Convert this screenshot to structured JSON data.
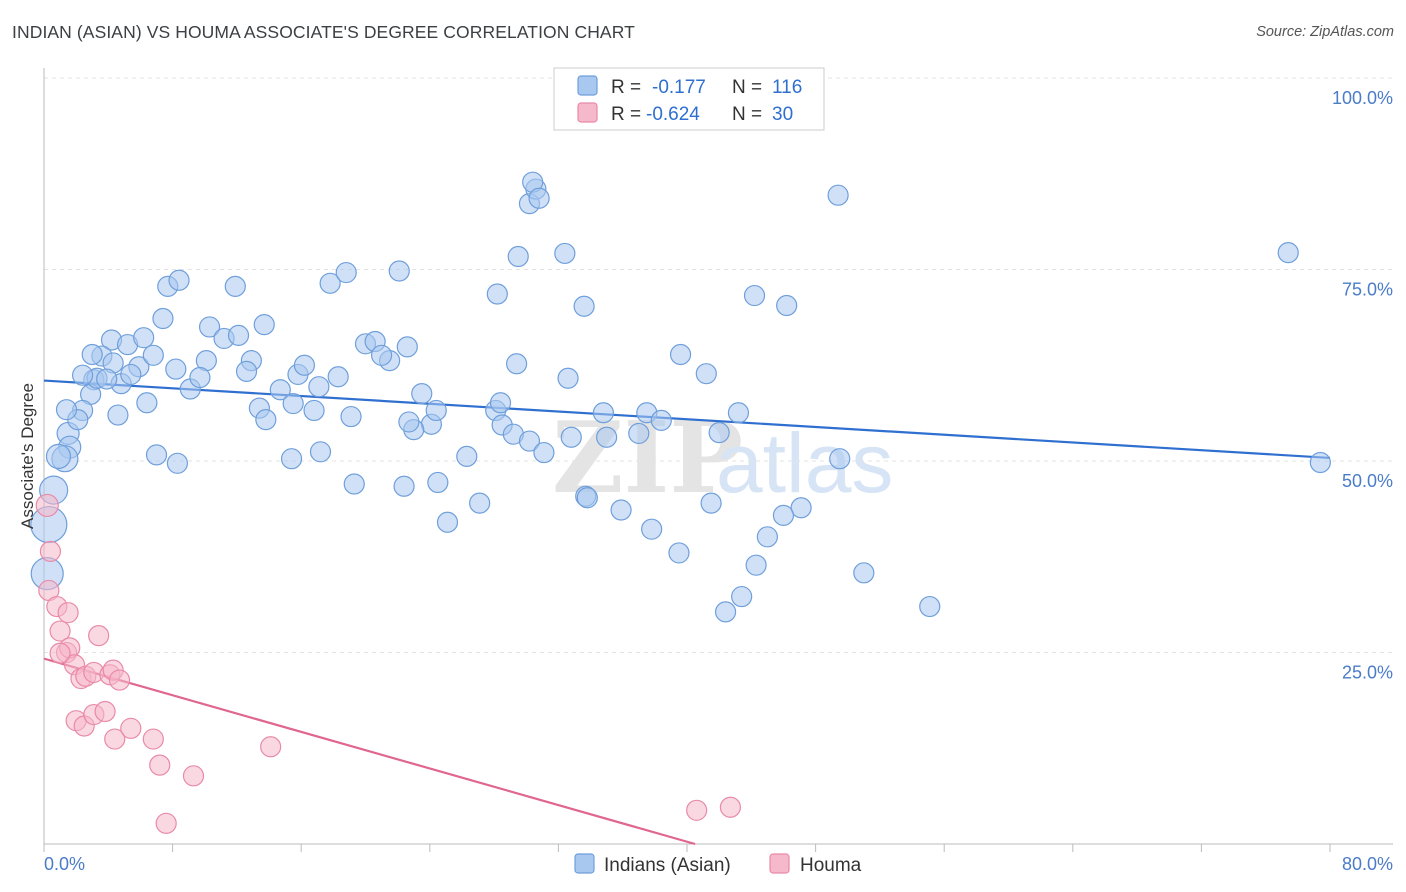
{
  "page": {
    "title": "INDIAN (ASIAN) VS HOUMA ASSOCIATE'S DEGREE CORRELATION CHART",
    "source": "Source: ZipAtlas.com",
    "watermark_zip": "ZIP",
    "watermark_atlas": "atlas"
  },
  "colors": {
    "blue_fill": "#a9c8f0",
    "blue_stroke": "#6f9fdb",
    "blue_line": "#2f6fd0",
    "pink_fill": "#f6b8cb",
    "pink_stroke": "#e98aa8",
    "pink_line": "#e06690",
    "grid": "#e3e3e3",
    "tick_text": "#4a7cc8"
  },
  "legend": {
    "rows": [
      {
        "r_label": "R =",
        "r_value": "-0.177",
        "n_label": "N =",
        "n_value": "116"
      },
      {
        "r_label": "R =",
        "r_value": "-0.624",
        "n_label": "N =",
        "n_value": "30"
      }
    ]
  },
  "chart_data": {
    "type": "scatter",
    "title": "INDIAN (ASIAN) VS HOUMA ASSOCIATE'S DEGREE CORRELATION CHART",
    "xlabel": "",
    "ylabel": "Associate's Degree",
    "xlim": [
      0,
      80
    ],
    "ylim": [
      0,
      100
    ],
    "x_tick_labels": [
      {
        "value": 0,
        "label": "0.0%"
      },
      {
        "value": 80,
        "label": "80.0%"
      }
    ],
    "y_tick_labels": [
      {
        "value": 25,
        "label": "25.0%"
      },
      {
        "value": 50,
        "label": "50.0%"
      },
      {
        "value": 75,
        "label": "75.0%"
      },
      {
        "value": 100,
        "label": "100.0%"
      }
    ],
    "grid": true,
    "legend_position": "bottom",
    "series": [
      {
        "name": "Indians (Asian)",
        "color": "blue",
        "R": -0.177,
        "N": 116,
        "trend": {
          "x": [
            0,
            80
          ],
          "y": [
            60.5,
            50.4
          ]
        },
        "points": [
          [
            0.3,
            41.7,
            18
          ],
          [
            0.2,
            35.3,
            16
          ],
          [
            0.6,
            46.2,
            14
          ],
          [
            1.5,
            53.6,
            11
          ],
          [
            1.6,
            51.8,
            11
          ],
          [
            1.3,
            50.3,
            13
          ],
          [
            0.9,
            50.6,
            12
          ],
          [
            3.1,
            60.6,
            10
          ],
          [
            4.2,
            65.8,
            10
          ],
          [
            3.6,
            63.7,
            10
          ],
          [
            2.9,
            58.7,
            10
          ],
          [
            3.3,
            60.8,
            10
          ],
          [
            2.4,
            56.6,
            10
          ],
          [
            4.3,
            62.8,
            10
          ],
          [
            5.2,
            65.2,
            10
          ],
          [
            4.8,
            60.1,
            10
          ],
          [
            5.9,
            62.3,
            10
          ],
          [
            6.4,
            57.6,
            10
          ],
          [
            6.2,
            66.1,
            10
          ],
          [
            5.4,
            61.3,
            10
          ],
          [
            4.6,
            56.0,
            10
          ],
          [
            6.8,
            63.8,
            10
          ],
          [
            7.4,
            68.6,
            10
          ],
          [
            7.7,
            72.8,
            10
          ],
          [
            8.4,
            73.6,
            10
          ],
          [
            8.2,
            62.0,
            10
          ],
          [
            9.1,
            59.4,
            10
          ],
          [
            10.3,
            67.5,
            10
          ],
          [
            10.1,
            63.1,
            10
          ],
          [
            9.7,
            60.9,
            10
          ],
          [
            11.2,
            66.0,
            10
          ],
          [
            11.9,
            72.8,
            10
          ],
          [
            12.1,
            66.4,
            10
          ],
          [
            12.9,
            63.1,
            10
          ],
          [
            12.6,
            61.7,
            10
          ],
          [
            13.7,
            67.8,
            10
          ],
          [
            14.7,
            59.3,
            10
          ],
          [
            15.8,
            61.3,
            10
          ],
          [
            16.2,
            62.5,
            10
          ],
          [
            17.8,
            73.2,
            10
          ],
          [
            18.8,
            74.6,
            10
          ],
          [
            17.1,
            59.7,
            10
          ],
          [
            18.3,
            61.0,
            10
          ],
          [
            20.0,
            65.3,
            10
          ],
          [
            20.6,
            65.6,
            10
          ],
          [
            21.5,
            63.1,
            10
          ],
          [
            22.6,
            64.9,
            10
          ],
          [
            22.1,
            74.8,
            10
          ],
          [
            23.5,
            58.8,
            10
          ],
          [
            24.1,
            54.8,
            10
          ],
          [
            24.4,
            56.6,
            10
          ],
          [
            23.0,
            54.1,
            10
          ],
          [
            22.7,
            55.1,
            10
          ],
          [
            3.9,
            60.7,
            10
          ],
          [
            3.0,
            63.9,
            10
          ],
          [
            2.1,
            55.4,
            10
          ],
          [
            1.4,
            56.7,
            10
          ],
          [
            2.4,
            61.2,
            10
          ],
          [
            13.4,
            56.9,
            10
          ],
          [
            13.8,
            55.4,
            10
          ],
          [
            15.5,
            57.5,
            10
          ],
          [
            16.8,
            56.6,
            10
          ],
          [
            21.0,
            63.8,
            10
          ],
          [
            8.3,
            49.7,
            10
          ],
          [
            7.0,
            50.8,
            10
          ],
          [
            15.4,
            50.3,
            10
          ],
          [
            17.2,
            51.2,
            10
          ],
          [
            19.1,
            55.8,
            10
          ],
          [
            19.3,
            47.0,
            10
          ],
          [
            22.4,
            46.7,
            10
          ],
          [
            24.5,
            47.2,
            10
          ],
          [
            26.3,
            50.6,
            10
          ],
          [
            28.1,
            56.6,
            10
          ],
          [
            28.5,
            54.7,
            10
          ],
          [
            29.2,
            53.5,
            10
          ],
          [
            28.4,
            57.6,
            10
          ],
          [
            30.2,
            52.6,
            10
          ],
          [
            31.1,
            51.1,
            10
          ],
          [
            32.6,
            60.8,
            10
          ],
          [
            32.8,
            53.1,
            10
          ],
          [
            33.7,
            45.4,
            10
          ],
          [
            34.8,
            56.3,
            10
          ],
          [
            35.0,
            53.1,
            10
          ],
          [
            37.0,
            53.6,
            10
          ],
          [
            37.5,
            56.3,
            10
          ],
          [
            38.4,
            55.3,
            10
          ],
          [
            29.4,
            62.7,
            10
          ],
          [
            28.2,
            71.8,
            10
          ],
          [
            29.5,
            76.7,
            10
          ],
          [
            30.2,
            83.6,
            10
          ],
          [
            30.6,
            85.5,
            10
          ],
          [
            30.4,
            86.4,
            10
          ],
          [
            32.4,
            77.1,
            10
          ],
          [
            30.8,
            84.3,
            10
          ],
          [
            33.6,
            70.2,
            10
          ],
          [
            39.6,
            63.9,
            10
          ],
          [
            41.2,
            61.4,
            10
          ],
          [
            42.0,
            53.7,
            10
          ],
          [
            43.2,
            56.3,
            10
          ],
          [
            44.2,
            71.6,
            10
          ],
          [
            46.2,
            70.3,
            10
          ],
          [
            49.4,
            84.7,
            10
          ],
          [
            49.5,
            50.3,
            10
          ],
          [
            47.1,
            43.9,
            10
          ],
          [
            46.0,
            42.9,
            10
          ],
          [
            45.0,
            40.1,
            10
          ],
          [
            44.3,
            36.4,
            10
          ],
          [
            41.5,
            44.5,
            10
          ],
          [
            39.5,
            38.0,
            10
          ],
          [
            37.8,
            41.1,
            10
          ],
          [
            35.9,
            43.6,
            10
          ],
          [
            33.8,
            45.2,
            10
          ],
          [
            27.1,
            44.5,
            10
          ],
          [
            25.1,
            42.0,
            10
          ],
          [
            51.0,
            35.4,
            10
          ],
          [
            55.1,
            31.0,
            10
          ],
          [
            42.4,
            30.3,
            10
          ],
          [
            43.4,
            32.3,
            10
          ],
          [
            79.4,
            49.8,
            10
          ],
          [
            77.4,
            77.2,
            10
          ]
        ]
      },
      {
        "name": "Houma",
        "color": "pink",
        "R": -0.624,
        "N": 30,
        "trend": {
          "x": [
            0,
            40.5
          ],
          "y": [
            24.2,
            0
          ]
        },
        "points": [
          [
            0.2,
            44.2,
            11
          ],
          [
            0.4,
            38.2,
            10
          ],
          [
            0.3,
            33.1,
            10
          ],
          [
            0.8,
            31.0,
            10
          ],
          [
            1.5,
            30.2,
            10
          ],
          [
            1.0,
            27.8,
            10
          ],
          [
            1.4,
            25.0,
            10
          ],
          [
            1.6,
            25.6,
            10
          ],
          [
            1.9,
            23.4,
            10
          ],
          [
            2.3,
            21.6,
            10
          ],
          [
            2.6,
            21.9,
            10
          ],
          [
            3.1,
            22.4,
            10
          ],
          [
            3.4,
            27.2,
            10
          ],
          [
            4.1,
            22.1,
            10
          ],
          [
            4.3,
            22.7,
            10
          ],
          [
            4.7,
            21.4,
            10
          ],
          [
            2.0,
            16.1,
            10
          ],
          [
            2.5,
            15.4,
            10
          ],
          [
            3.1,
            16.9,
            10
          ],
          [
            3.8,
            17.3,
            10
          ],
          [
            4.4,
            13.7,
            10
          ],
          [
            5.4,
            15.1,
            10
          ],
          [
            6.8,
            13.7,
            10
          ],
          [
            7.2,
            10.3,
            10
          ],
          [
            9.3,
            8.9,
            10
          ],
          [
            14.1,
            12.7,
            10
          ],
          [
            7.6,
            2.7,
            10
          ],
          [
            40.6,
            4.4,
            10
          ],
          [
            42.7,
            4.8,
            10
          ],
          [
            1.0,
            24.9,
            10
          ]
        ]
      }
    ]
  }
}
